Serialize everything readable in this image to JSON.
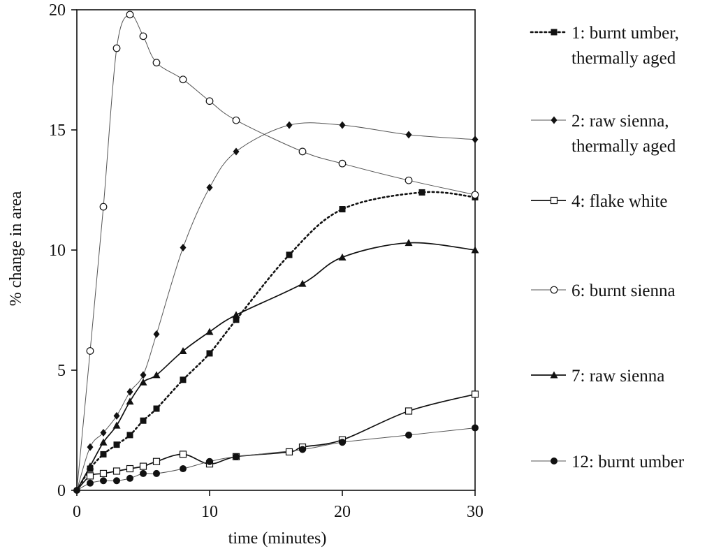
{
  "chart_data": {
    "type": "line",
    "title": "",
    "xlabel": "time (minutes)",
    "ylabel": "% change in area",
    "xlim": [
      0,
      30
    ],
    "ylim": [
      0,
      20
    ],
    "xticks": [
      0,
      10,
      20,
      30
    ],
    "yticks": [
      0,
      5,
      10,
      15,
      20
    ],
    "grid": false,
    "legend_position": "right",
    "series": [
      {
        "name_lines": [
          "1: burnt umber,",
          "thermally aged"
        ],
        "marker": "filled-square",
        "line": "dotted",
        "color": "#111111",
        "points": [
          [
            0,
            0
          ],
          [
            1,
            0.9
          ],
          [
            2,
            1.5
          ],
          [
            3,
            1.9
          ],
          [
            4,
            2.3
          ],
          [
            5,
            2.9
          ],
          [
            6,
            3.4
          ],
          [
            8,
            4.6
          ],
          [
            10,
            5.7
          ],
          [
            12,
            7.1
          ],
          [
            16,
            9.8
          ],
          [
            20,
            11.7
          ],
          [
            26,
            12.4
          ],
          [
            30,
            12.2
          ]
        ]
      },
      {
        "name_lines": [
          "2: raw sienna,",
          "thermally aged"
        ],
        "marker": "filled-diamond",
        "line": "thin",
        "color": "#555555",
        "points": [
          [
            0,
            0
          ],
          [
            1,
            1.8
          ],
          [
            2,
            2.4
          ],
          [
            3,
            3.1
          ],
          [
            4,
            4.1
          ],
          [
            5,
            4.8
          ],
          [
            6,
            6.5
          ],
          [
            8,
            10.1
          ],
          [
            10,
            12.6
          ],
          [
            12,
            14.1
          ],
          [
            16,
            15.2
          ],
          [
            20,
            15.2
          ],
          [
            25,
            14.8
          ],
          [
            30,
            14.6
          ]
        ]
      },
      {
        "name_lines": [
          "4: flake white"
        ],
        "marker": "open-square",
        "line": "solid",
        "color": "#111111",
        "points": [
          [
            0,
            0
          ],
          [
            1,
            0.6
          ],
          [
            2,
            0.7
          ],
          [
            3,
            0.8
          ],
          [
            4,
            0.9
          ],
          [
            5,
            1.0
          ],
          [
            6,
            1.2
          ],
          [
            8,
            1.5
          ],
          [
            10,
            1.1
          ],
          [
            12,
            1.4
          ],
          [
            16,
            1.6
          ],
          [
            17,
            1.8
          ],
          [
            20,
            2.1
          ],
          [
            25,
            3.3
          ],
          [
            30,
            4.0
          ]
        ]
      },
      {
        "name_lines": [
          "6: burnt sienna"
        ],
        "marker": "open-circle",
        "line": "thin",
        "color": "#555555",
        "points": [
          [
            0,
            0
          ],
          [
            1,
            5.8
          ],
          [
            2,
            11.8
          ],
          [
            3,
            18.4
          ],
          [
            4,
            19.8
          ],
          [
            5,
            18.9
          ],
          [
            6,
            17.8
          ],
          [
            8,
            17.1
          ],
          [
            10,
            16.2
          ],
          [
            12,
            15.4
          ],
          [
            17,
            14.1
          ],
          [
            20,
            13.6
          ],
          [
            25,
            12.9
          ],
          [
            30,
            12.3
          ]
        ]
      },
      {
        "name_lines": [
          "7: raw sienna"
        ],
        "marker": "filled-triangle",
        "line": "solid",
        "color": "#111111",
        "points": [
          [
            0,
            0
          ],
          [
            1,
            1.0
          ],
          [
            2,
            2.0
          ],
          [
            3,
            2.7
          ],
          [
            4,
            3.7
          ],
          [
            5,
            4.5
          ],
          [
            6,
            4.8
          ],
          [
            8,
            5.8
          ],
          [
            10,
            6.6
          ],
          [
            12,
            7.3
          ],
          [
            17,
            8.6
          ],
          [
            20,
            9.7
          ],
          [
            25,
            10.3
          ],
          [
            30,
            10.0
          ]
        ]
      },
      {
        "name_lines": [
          "12: burnt umber"
        ],
        "marker": "filled-circle",
        "line": "thin",
        "color": "#555555",
        "points": [
          [
            0,
            0
          ],
          [
            1,
            0.3
          ],
          [
            2,
            0.4
          ],
          [
            3,
            0.4
          ],
          [
            4,
            0.5
          ],
          [
            5,
            0.7
          ],
          [
            6,
            0.7
          ],
          [
            8,
            0.9
          ],
          [
            10,
            1.2
          ],
          [
            12,
            1.4
          ],
          [
            17,
            1.7
          ],
          [
            20,
            2.0
          ],
          [
            25,
            2.3
          ],
          [
            30,
            2.6
          ]
        ]
      }
    ]
  }
}
